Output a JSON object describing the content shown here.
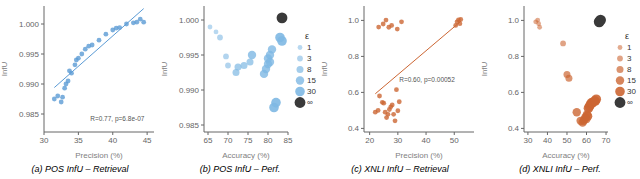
{
  "chart_data": [
    {
      "type": "scatter",
      "title": "(a) POS InfU – Retrieval",
      "xlabel": "Precision (%)",
      "ylabel": "InfU",
      "xlim": [
        30,
        46
      ],
      "ylim": [
        0.982,
        1.003
      ],
      "xticks": [
        30,
        35,
        40,
        45
      ],
      "yticks": [
        0.985,
        {
          "value": 0.99,
          "label": "0.990"
        },
        0.995,
        {
          "value": 1.0,
          "label": "1.000"
        }
      ],
      "annotations": [
        "R=0.77, p=6.8e-07"
      ],
      "grid": false,
      "series": [
        {
          "color": "#5B9BD5",
          "x": [
            31.5,
            32.0,
            32.5,
            32.7,
            33.0,
            33.2,
            33.5,
            33.7,
            34.0,
            34.5,
            34.7,
            35.0,
            35.5,
            36.0,
            36.5,
            37.0,
            38.0,
            39.0,
            40.0,
            40.5,
            41.0,
            42.0,
            43.0,
            43.5,
            44.0,
            44.5
          ],
          "values": [
            0.9875,
            0.988,
            0.987,
            0.9878,
            0.9893,
            0.99,
            0.9905,
            0.9922,
            0.9918,
            0.9932,
            0.994,
            0.9943,
            0.995,
            0.9958,
            0.9963,
            0.9965,
            0.9973,
            0.9983,
            0.999,
            0.9993,
            0.9994,
            1.0,
            1.0002,
            1.0003,
            1.0008,
            1.0003
          ]
        },
        {
          "type": "line",
          "color": "#5B9BD5",
          "x": [
            31.5,
            44.5
          ],
          "values": [
            0.9894065,
            1.0025653
          ]
        }
      ]
    },
    {
      "type": "scatter",
      "title": "(b) POS InfU – Perf.",
      "xlabel": "Accuracy (%)",
      "ylabel": "InfU",
      "xlim": [
        64,
        85
      ],
      "ylim": [
        0.984,
        1.002
      ],
      "xticks": [
        65,
        70,
        75,
        80,
        85
      ],
      "yticks": [
        0.985,
        {
          "value": 0.99,
          "label": "0.990"
        },
        0.995,
        {
          "value": 1.0,
          "label": "1.000"
        }
      ],
      "legend": "right",
      "legend_title": "ε",
      "grid": false,
      "series": [
        {
          "name": "1",
          "color": "#7EB8E3",
          "x": [
            65.5,
            67.0
          ],
          "values": [
            0.999,
            0.9983
          ]
        },
        {
          "name": "3",
          "color": "#7EB8E3",
          "x": [
            68.0,
            69.5,
            70.0
          ],
          "values": [
            0.9975,
            0.9948,
            0.9935
          ]
        },
        {
          "name": "8",
          "color": "#7EB8E3",
          "x": [
            72.0,
            72.5,
            74.0,
            75.5
          ],
          "values": [
            0.9925,
            0.9933,
            0.9935,
            0.994
          ]
        },
        {
          "name": "15",
          "color": "#7EB8E3",
          "x": [
            76.0,
            79.0,
            79.5,
            80.0,
            80.0,
            80.5,
            80.5,
            81.0
          ],
          "values": [
            0.995,
            0.9923,
            0.993,
            0.9937,
            0.9945,
            0.995,
            0.994,
            0.9958
          ]
        },
        {
          "name": "30",
          "color": "#7EB8E3",
          "x": [
            81.5,
            82.0,
            83.0,
            83.5
          ],
          "values": [
            0.9875,
            0.9882,
            0.9975,
            0.997
          ]
        },
        {
          "name": "∞",
          "color": "#3A3A3A",
          "x": [
            83.5
          ],
          "values": [
            1.0003
          ]
        }
      ]
    },
    {
      "type": "scatter",
      "title": "(c) XNLI InfU – Retrieval",
      "xlabel": "Precision (%)",
      "ylabel": "InfU",
      "xlim": [
        18,
        57
      ],
      "ylim": [
        0.38,
        1.08
      ],
      "xticks": [
        20,
        30,
        40,
        50
      ],
      "yticks": [
        0.4,
        0.6,
        0.8,
        {
          "value": 1.0,
          "label": "1.0"
        }
      ],
      "annotations": [
        "R=0.60, p=0.00052"
      ],
      "grid": false,
      "series": [
        {
          "color": "#CC6633",
          "x": [
            22.0,
            23.0,
            23.5,
            24.5,
            25.0,
            25.5,
            26.0,
            26.5,
            27.0,
            27.5,
            28.0,
            28.5,
            29.0,
            29.5,
            30.0,
            30.5,
            23.2,
            24.8,
            25.8,
            26.8,
            27.8,
            29.8,
            31.3,
            50.5,
            51.0,
            51.5,
            52.0,
            52.3
          ],
          "values": [
            0.49,
            0.5,
            0.58,
            0.545,
            0.54,
            0.49,
            0.46,
            0.478,
            0.505,
            0.52,
            0.53,
            0.478,
            0.442,
            0.615,
            0.498,
            0.548,
            0.963,
            0.98,
            1.002,
            0.962,
            0.972,
            0.952,
            0.992,
            0.972,
            0.992,
            1.003,
            0.982,
            1.005
          ]
        },
        {
          "type": "line",
          "color": "#CC6633",
          "x": [
            22.0,
            52.3
          ],
          "values": [
            0.5923541,
            0.9947123
          ]
        }
      ]
    },
    {
      "type": "scatter",
      "title": "(d) XNLI InfU – Perf.",
      "xlabel": "Accuracy (%)",
      "ylabel": "InfU",
      "xlim": [
        28,
        71
      ],
      "ylim": [
        0.38,
        1.08
      ],
      "xticks": [
        30,
        40,
        50,
        60,
        70
      ],
      "yticks": [
        0.4,
        0.6,
        0.8,
        {
          "value": 1.0,
          "label": "1.0"
        }
      ],
      "legend": "right",
      "legend_title": "ε",
      "grid": false,
      "series": [
        {
          "name": "1",
          "color": "#CC6633",
          "x": [
            34.0,
            35.0,
            35.5,
            36.0
          ],
          "values": [
            0.992,
            1.002,
            0.982,
            0.962
          ]
        },
        {
          "name": "3",
          "color": "#CC6633",
          "x": [
            48.0
          ],
          "values": [
            0.872
          ]
        },
        {
          "name": "8",
          "color": "#CC6633",
          "x": [
            50.0,
            51.0
          ],
          "values": [
            0.7,
            0.678
          ]
        },
        {
          "name": "15",
          "color": "#CC6633",
          "x": [
            55.0,
            57.0,
            58.0,
            58.5,
            59.0,
            59.5,
            60.0,
            60.2
          ],
          "values": [
            0.49,
            0.442,
            0.432,
            0.442,
            0.452,
            0.462,
            0.452,
            0.478
          ]
        },
        {
          "name": "30",
          "color": "#CC6633",
          "x": [
            60.5,
            61.0,
            61.5,
            62.0,
            62.5,
            63.0,
            64.0,
            64.5,
            65.0
          ],
          "values": [
            0.468,
            0.512,
            0.522,
            0.532,
            0.542,
            0.542,
            0.552,
            0.552,
            0.562
          ]
        },
        {
          "name": "∞",
          "color": "#3A3A3A",
          "x": [
            66.5,
            67.2
          ],
          "values": [
            0.992,
            1.002
          ]
        }
      ]
    }
  ]
}
